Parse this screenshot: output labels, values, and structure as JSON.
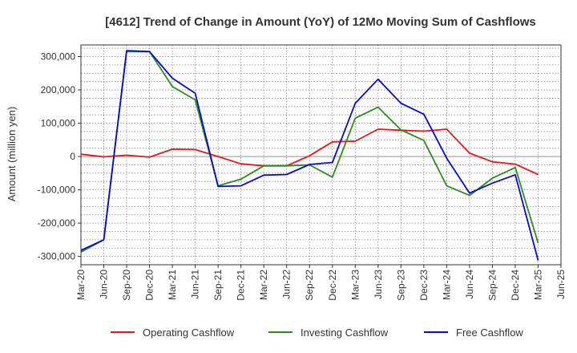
{
  "chart_data": {
    "type": "line",
    "title": "[4612]  Trend of Change in Amount (YoY) of 12Mo Moving Sum of Cashflows",
    "xlabel": "",
    "ylabel": "Amount (million yen)",
    "ylim": [
      -325000,
      335000
    ],
    "yticks": [
      300000,
      200000,
      100000,
      0,
      -100000,
      -200000,
      -300000
    ],
    "ytick_labels": [
      "300,000",
      "200,000",
      "100,000",
      "0",
      "-100,000",
      "-200,000",
      "-300,000"
    ],
    "grid": true,
    "legend_position": "bottom",
    "categories": [
      "Mar-20",
      "Jun-20",
      "Sep-20",
      "Dec-20",
      "Mar-21",
      "Jun-21",
      "Sep-21",
      "Dec-21",
      "Mar-22",
      "Jun-22",
      "Sep-22",
      "Dec-22",
      "Mar-23",
      "Jun-23",
      "Sep-23",
      "Dec-23",
      "Mar-24",
      "Jun-24",
      "Sep-24",
      "Dec-24",
      "Mar-25",
      "Jun-25"
    ],
    "series": [
      {
        "name": "Operating Cashflow",
        "color": "#e31a1c",
        "values": [
          7000,
          -1000,
          4000,
          -2000,
          22000,
          21000,
          0,
          -22000,
          -28000,
          -28000,
          2000,
          44000,
          46000,
          82000,
          79000,
          76000,
          82000,
          10000,
          -16000,
          -23000,
          -54000,
          null
        ]
      },
      {
        "name": "Investing Cashflow",
        "color": "#2e8b23",
        "values": [
          -287000,
          -250000,
          315000,
          315000,
          210000,
          170000,
          -88000,
          -68000,
          -28000,
          -28000,
          -25000,
          -62000,
          115000,
          148000,
          80000,
          48000,
          -88000,
          -117000,
          -65000,
          -33000,
          -260000,
          null
        ]
      },
      {
        "name": "Free Cashflow",
        "color": "#0a0ad0",
        "values": [
          -282000,
          -250000,
          318000,
          315000,
          235000,
          190000,
          -90000,
          -88000,
          -56000,
          -54000,
          -24000,
          -18000,
          160000,
          232000,
          160000,
          127000,
          -5000,
          -110000,
          -80000,
          -55000,
          -312000,
          null
        ]
      }
    ]
  }
}
